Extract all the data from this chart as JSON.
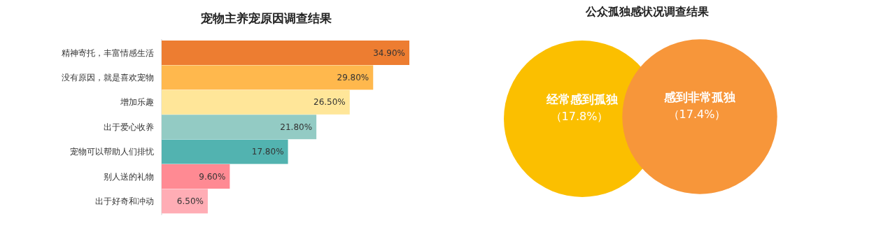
{
  "chart_data": [
    {
      "type": "bar",
      "orientation": "horizontal",
      "title": "宠物主养宠原因调查结果",
      "categories": [
        "精神寄托，丰富情感生活",
        "没有原因，就是喜欢宠物",
        "增加乐趣",
        "出于爱心收养",
        "宠物可以帮助人们排忧",
        "别人送的礼物",
        "出于好奇和冲动"
      ],
      "values": [
        34.9,
        29.8,
        26.5,
        21.8,
        17.8,
        9.6,
        6.5
      ],
      "colors": [
        "#ed7d31",
        "#ffb84d",
        "#ffe699",
        "#93cbc4",
        "#52b3b0",
        "#ff8a93",
        "#ffadb5"
      ],
      "value_labels": [
        "34.90%",
        "29.80%",
        "26.50%",
        "21.80%",
        "17.80%",
        "9.60%",
        "6.50%"
      ]
    },
    {
      "type": "other",
      "title": "公众孤独感状况调查结果",
      "categories": [
        "经常感到孤独",
        "感到非常孤独"
      ],
      "values": [
        17.8,
        17.4
      ],
      "colors": [
        "#fbbf00",
        "#f7963a"
      ],
      "value_labels": [
        "（17.8%）",
        "（17.4%）"
      ]
    }
  ]
}
